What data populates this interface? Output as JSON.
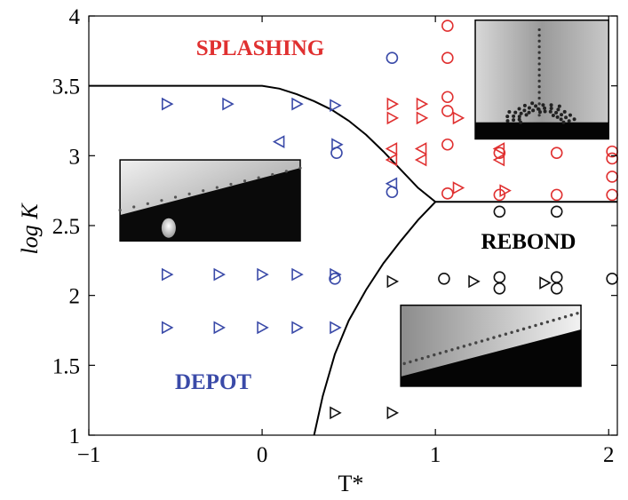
{
  "chart_data": {
    "type": "scatter",
    "xlabel": "T*",
    "ylabel": "log K",
    "xlim": [
      -1,
      2.05
    ],
    "ylim": [
      1,
      4
    ],
    "xticks": [
      -1,
      0,
      1,
      2
    ],
    "yticks": [
      1,
      1.5,
      2,
      2.5,
      3,
      3.5,
      4
    ],
    "xtick_labels": [
      "−1",
      "0",
      "1",
      "2"
    ],
    "ytick_labels": [
      "1",
      "1.5",
      "2",
      "2.5",
      "3",
      "3.5",
      "4"
    ],
    "grid": false,
    "region_labels": [
      {
        "text": "SPLASHING",
        "color": "#e03030"
      },
      {
        "text": "DEPOT",
        "color": "#3a4aa8"
      },
      {
        "text": "REBOND",
        "color": "#000000"
      }
    ],
    "boundaries": [
      {
        "name": "splash-boundary",
        "x": [
          -1,
          0,
          0.1,
          0.2,
          0.3,
          0.4,
          0.5,
          0.6,
          0.7,
          0.8,
          0.9,
          1.0,
          2.05
        ],
        "y": [
          3.5,
          3.5,
          3.48,
          3.44,
          3.39,
          3.33,
          3.25,
          3.15,
          3.03,
          2.9,
          2.77,
          2.67,
          2.67
        ]
      },
      {
        "name": "rebond-boundary",
        "x": [
          0.3,
          0.35,
          0.42,
          0.5,
          0.6,
          0.7,
          0.8,
          0.9,
          1.0
        ],
        "y": [
          1.0,
          1.28,
          1.58,
          1.82,
          2.04,
          2.23,
          2.39,
          2.54,
          2.67
        ]
      }
    ],
    "series": [
      {
        "color": "#3a4aa8",
        "points": [
          {
            "x": -0.55,
            "y": 3.37,
            "m": "tri-right"
          },
          {
            "x": -0.2,
            "y": 3.37,
            "m": "tri-right"
          },
          {
            "x": 0.2,
            "y": 3.37,
            "m": "tri-right"
          },
          {
            "x": 0.42,
            "y": 3.36,
            "m": "tri-right"
          },
          {
            "x": 0.1,
            "y": 3.1,
            "m": "tri-left"
          },
          {
            "x": 0.43,
            "y": 3.08,
            "m": "tri-right"
          },
          {
            "x": 0.43,
            "y": 3.02,
            "m": "circle"
          },
          {
            "x": 0.75,
            "y": 3.7,
            "m": "circle"
          },
          {
            "x": 0.75,
            "y": 2.8,
            "m": "tri-left"
          },
          {
            "x": 0.75,
            "y": 2.74,
            "m": "circle"
          },
          {
            "x": -0.55,
            "y": 2.15,
            "m": "tri-right"
          },
          {
            "x": -0.25,
            "y": 2.15,
            "m": "tri-right"
          },
          {
            "x": 0.0,
            "y": 2.15,
            "m": "tri-right"
          },
          {
            "x": 0.2,
            "y": 2.15,
            "m": "tri-right"
          },
          {
            "x": 0.42,
            "y": 2.15,
            "m": "tri-right"
          },
          {
            "x": 0.42,
            "y": 2.12,
            "m": "circle"
          },
          {
            "x": -0.55,
            "y": 1.77,
            "m": "tri-right"
          },
          {
            "x": -0.25,
            "y": 1.77,
            "m": "tri-right"
          },
          {
            "x": 0.0,
            "y": 1.77,
            "m": "tri-right"
          },
          {
            "x": 0.2,
            "y": 1.77,
            "m": "tri-right"
          },
          {
            "x": 0.42,
            "y": 1.77,
            "m": "tri-right"
          }
        ]
      },
      {
        "color": "#e03030",
        "points": [
          {
            "x": 1.07,
            "y": 3.93,
            "m": "circle"
          },
          {
            "x": 1.07,
            "y": 3.7,
            "m": "circle"
          },
          {
            "x": 1.07,
            "y": 3.42,
            "m": "circle"
          },
          {
            "x": 1.07,
            "y": 3.32,
            "m": "circle"
          },
          {
            "x": 1.07,
            "y": 3.08,
            "m": "circle"
          },
          {
            "x": 1.07,
            "y": 2.73,
            "m": "circle"
          },
          {
            "x": 1.37,
            "y": 3.02,
            "m": "circle"
          },
          {
            "x": 1.37,
            "y": 2.72,
            "m": "circle"
          },
          {
            "x": 1.7,
            "y": 3.02,
            "m": "circle"
          },
          {
            "x": 1.7,
            "y": 2.72,
            "m": "circle"
          },
          {
            "x": 2.02,
            "y": 3.03,
            "m": "circle"
          },
          {
            "x": 2.02,
            "y": 2.98,
            "m": "circle"
          },
          {
            "x": 2.02,
            "y": 2.85,
            "m": "circle"
          },
          {
            "x": 2.02,
            "y": 2.72,
            "m": "circle"
          },
          {
            "x": 0.75,
            "y": 3.37,
            "m": "tri-right"
          },
          {
            "x": 0.75,
            "y": 3.27,
            "m": "tri-right"
          },
          {
            "x": 0.75,
            "y": 3.05,
            "m": "tri-left"
          },
          {
            "x": 0.75,
            "y": 2.97,
            "m": "tri-left"
          },
          {
            "x": 0.92,
            "y": 3.37,
            "m": "tri-right"
          },
          {
            "x": 0.92,
            "y": 3.27,
            "m": "tri-right"
          },
          {
            "x": 0.92,
            "y": 3.05,
            "m": "tri-left"
          },
          {
            "x": 0.92,
            "y": 2.97,
            "m": "tri-left"
          },
          {
            "x": 1.13,
            "y": 3.27,
            "m": "tri-right"
          },
          {
            "x": 1.13,
            "y": 2.77,
            "m": "tri-right"
          },
          {
            "x": 1.37,
            "y": 3.05,
            "m": "tri-left"
          },
          {
            "x": 1.37,
            "y": 2.97,
            "m": "tri-left"
          },
          {
            "x": 1.4,
            "y": 2.75,
            "m": "tri-right"
          }
        ]
      },
      {
        "color": "#111111",
        "points": [
          {
            "x": 1.37,
            "y": 2.6,
            "m": "circle"
          },
          {
            "x": 1.7,
            "y": 2.6,
            "m": "circle"
          },
          {
            "x": 1.05,
            "y": 2.12,
            "m": "circle"
          },
          {
            "x": 1.37,
            "y": 2.13,
            "m": "circle"
          },
          {
            "x": 1.37,
            "y": 2.05,
            "m": "circle"
          },
          {
            "x": 1.7,
            "y": 2.13,
            "m": "circle"
          },
          {
            "x": 1.7,
            "y": 2.05,
            "m": "circle"
          },
          {
            "x": 2.02,
            "y": 2.12,
            "m": "circle"
          },
          {
            "x": 0.75,
            "y": 2.1,
            "m": "tri-right"
          },
          {
            "x": 1.22,
            "y": 2.1,
            "m": "tri-right"
          },
          {
            "x": 1.63,
            "y": 2.09,
            "m": "tri-right"
          },
          {
            "x": 0.42,
            "y": 1.16,
            "m": "tri-right"
          },
          {
            "x": 0.75,
            "y": 1.16,
            "m": "tri-right"
          }
        ]
      }
    ]
  },
  "insets": [
    {
      "name": "splashing-photo-inset",
      "x0": 1.23,
      "y1": 3.97,
      "x1": 2.0,
      "y0": 3.12,
      "kind": "splash"
    },
    {
      "name": "depot-photo-inset",
      "x0": -0.82,
      "y1": 2.97,
      "x1": 0.22,
      "y0": 2.39,
      "kind": "depot"
    },
    {
      "name": "rebond-photo-inset",
      "x0": 0.8,
      "y1": 1.93,
      "x1": 1.84,
      "y0": 1.35,
      "kind": "rebond"
    }
  ]
}
